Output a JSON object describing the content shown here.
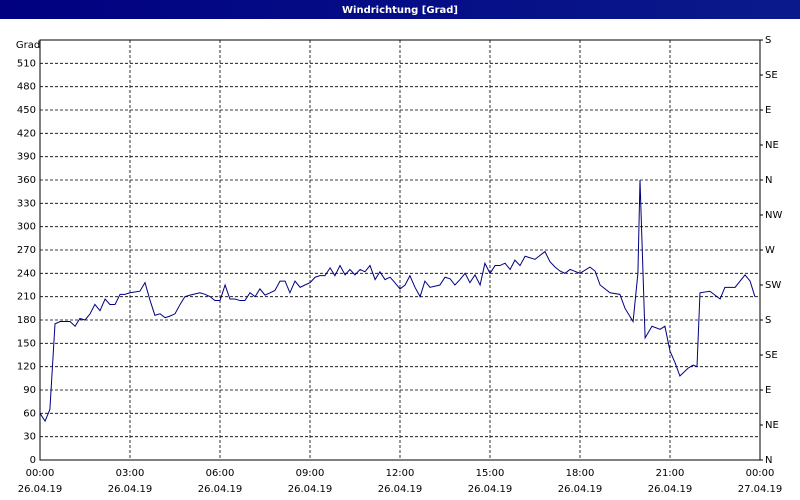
{
  "chart_data": {
    "type": "line",
    "title": "Windrichtung [Grad]",
    "y_label": "Grad",
    "x": [
      0,
      0.17,
      0.33,
      0.5,
      0.67,
      1.0,
      1.17,
      1.33,
      1.5,
      1.67,
      1.83,
      2.0,
      2.17,
      2.33,
      2.5,
      2.67,
      2.83,
      3.0,
      3.33,
      3.5,
      3.67,
      3.83,
      4.0,
      4.17,
      4.33,
      4.5,
      4.67,
      4.83,
      5.0,
      5.33,
      5.5,
      5.67,
      5.83,
      6.0,
      6.17,
      6.33,
      6.5,
      6.67,
      6.83,
      7.0,
      7.17,
      7.33,
      7.5,
      7.67,
      7.83,
      8.0,
      8.17,
      8.33,
      8.5,
      8.67,
      8.83,
      9.0,
      9.17,
      9.33,
      9.5,
      9.67,
      9.83,
      10.0,
      10.17,
      10.33,
      10.5,
      10.67,
      10.83,
      11.0,
      11.17,
      11.33,
      11.5,
      11.67,
      11.83,
      12.0,
      12.17,
      12.33,
      12.5,
      12.67,
      12.83,
      13.0,
      13.33,
      13.5,
      13.67,
      13.83,
      14.0,
      14.17,
      14.33,
      14.5,
      14.67,
      14.83,
      15.0,
      15.17,
      15.33,
      15.5,
      15.67,
      15.83,
      16.0,
      16.17,
      16.5,
      16.83,
      17.0,
      17.17,
      17.33,
      17.5,
      17.67,
      18.0,
      18.33,
      18.5,
      18.67,
      19.0,
      19.33,
      19.5,
      19.77,
      19.93,
      20.0,
      20.17,
      20.4,
      20.67,
      20.83,
      21.0,
      21.17,
      21.33,
      21.6,
      21.77,
      21.9,
      22.0,
      22.33,
      22.67,
      22.83,
      23.17,
      23.5,
      23.67,
      23.83
    ],
    "series": [
      {
        "name": "Windrichtung",
        "color": "#000080",
        "values": [
          60,
          50,
          65,
          175,
          178,
          178,
          172,
          182,
          180,
          188,
          200,
          192,
          207,
          200,
          200,
          213,
          213,
          215,
          217,
          228,
          205,
          186,
          188,
          183,
          185,
          188,
          200,
          210,
          212,
          215,
          213,
          210,
          205,
          205,
          225,
          207,
          207,
          205,
          205,
          215,
          210,
          220,
          212,
          215,
          218,
          230,
          230,
          215,
          230,
          222,
          225,
          228,
          235,
          237,
          237,
          247,
          237,
          250,
          238,
          245,
          238,
          245,
          242,
          250,
          232,
          242,
          232,
          235,
          228,
          220,
          225,
          237,
          222,
          210,
          230,
          222,
          225,
          235,
          233,
          225,
          232,
          240,
          228,
          238,
          225,
          253,
          240,
          250,
          250,
          253,
          245,
          257,
          250,
          262,
          258,
          268,
          255,
          248,
          243,
          240,
          245,
          240,
          248,
          243,
          225,
          215,
          213,
          195,
          178,
          240,
          360,
          157,
          172,
          168,
          172,
          140,
          125,
          108,
          118,
          122,
          120,
          215,
          217,
          207,
          222,
          222,
          238,
          230,
          210
        ]
      }
    ],
    "xlim": [
      0,
      24
    ],
    "xticks": [
      {
        "value": 0,
        "label": "00:00",
        "date": "26.04.19"
      },
      {
        "value": 3,
        "label": "03:00",
        "date": "26.04.19"
      },
      {
        "value": 6,
        "label": "06:00",
        "date": "26.04.19"
      },
      {
        "value": 9,
        "label": "09:00",
        "date": "26.04.19"
      },
      {
        "value": 12,
        "label": "12:00",
        "date": "26.04.19"
      },
      {
        "value": 15,
        "label": "15:00",
        "date": "26.04.19"
      },
      {
        "value": 18,
        "label": "18:00",
        "date": "26.04.19"
      },
      {
        "value": 21,
        "label": "21:00",
        "date": "26.04.19"
      },
      {
        "value": 24,
        "label": "00:00",
        "date": "27.04.19"
      }
    ],
    "ylim": [
      0,
      540
    ],
    "yticks": [
      0,
      30,
      60,
      90,
      120,
      150,
      180,
      210,
      240,
      270,
      300,
      330,
      360,
      390,
      420,
      450,
      480,
      510
    ],
    "y2lim": [
      0,
      540
    ],
    "y2ticks": [
      {
        "value": 0,
        "label": "N"
      },
      {
        "value": 45,
        "label": "NE"
      },
      {
        "value": 90,
        "label": "E"
      },
      {
        "value": 135,
        "label": "SE"
      },
      {
        "value": 180,
        "label": "S"
      },
      {
        "value": 225,
        "label": "SW"
      },
      {
        "value": 270,
        "label": "W"
      },
      {
        "value": 315,
        "label": "NW"
      },
      {
        "value": 360,
        "label": "N"
      },
      {
        "value": 405,
        "label": "NE"
      },
      {
        "value": 450,
        "label": "E"
      },
      {
        "value": 495,
        "label": "SE"
      },
      {
        "value": 540,
        "label": "S"
      }
    ],
    "grid": true
  }
}
